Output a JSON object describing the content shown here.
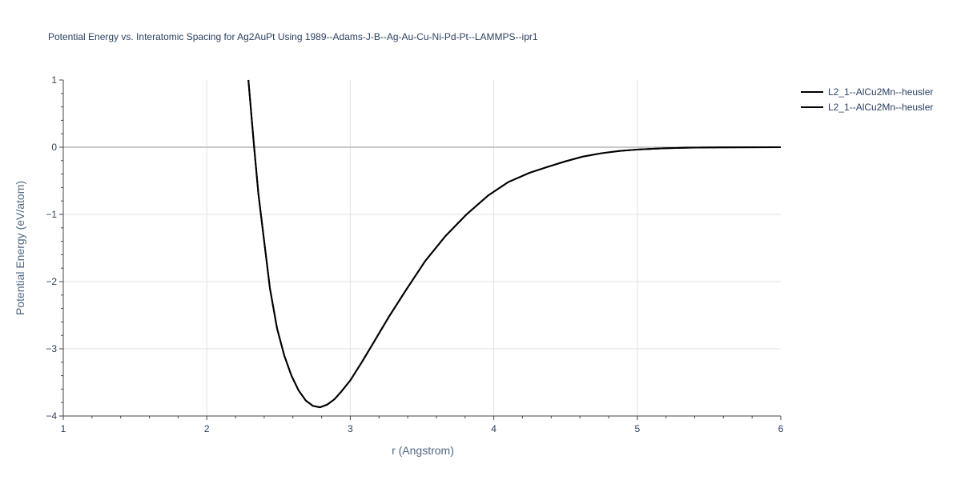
{
  "chart_data": {
    "type": "line",
    "title": "Potential Energy vs. Interatomic Spacing for Ag2AuPt Using 1989--Adams-J-B--Ag-Au-Cu-Ni-Pd-Pt--LAMMPS--ipr1",
    "xlabel": "r (Angstrom)",
    "ylabel": "Potential Energy (eV/atom)",
    "xlim": [
      1,
      6
    ],
    "ylim": [
      -4,
      1
    ],
    "x_ticks": [
      "1",
      "2",
      "3",
      "4",
      "5",
      "6"
    ],
    "y_ticks": [
      "1",
      "0",
      "−1",
      "−2",
      "−3",
      "−4"
    ],
    "grid": true,
    "legend_position": "top-right",
    "series": [
      {
        "name": "L2_1--AlCu2Mn--heusler",
        "color": "#000000",
        "x": [
          2.29,
          2.33,
          2.36,
          2.4,
          2.44,
          2.49,
          2.54,
          2.59,
          2.64,
          2.69,
          2.74,
          2.79,
          2.84,
          2.89,
          2.94,
          3.0,
          3.08,
          3.17,
          3.27,
          3.39,
          3.52,
          3.66,
          3.81,
          3.96,
          4.1,
          4.25,
          4.38,
          4.5,
          4.62,
          4.75,
          4.88,
          5.02,
          5.18,
          5.35,
          5.55,
          5.75,
          6.0
        ],
        "y": [
          1.0,
          0.0,
          -0.7,
          -1.4,
          -2.1,
          -2.7,
          -3.1,
          -3.4,
          -3.62,
          -3.77,
          -3.85,
          -3.87,
          -3.83,
          -3.75,
          -3.63,
          -3.47,
          -3.2,
          -2.88,
          -2.52,
          -2.12,
          -1.7,
          -1.33,
          -1.0,
          -0.72,
          -0.52,
          -0.38,
          -0.29,
          -0.21,
          -0.14,
          -0.09,
          -0.055,
          -0.032,
          -0.016,
          -0.008,
          -0.003,
          -0.001,
          0.0
        ]
      },
      {
        "name": "L2_1--AlCu2Mn--heusler",
        "color": "#000000",
        "x": [
          2.29,
          2.33,
          2.36,
          2.4,
          2.44,
          2.49,
          2.54,
          2.59,
          2.64,
          2.69,
          2.74,
          2.79,
          2.84,
          2.89,
          2.94,
          3.0,
          3.08,
          3.17,
          3.27,
          3.39,
          3.52,
          3.66,
          3.81,
          3.96,
          4.1,
          4.25,
          4.38,
          4.5,
          4.62,
          4.75,
          4.88,
          5.02,
          5.18,
          5.35,
          5.55,
          5.75,
          6.0
        ],
        "y": [
          1.0,
          0.0,
          -0.7,
          -1.4,
          -2.1,
          -2.7,
          -3.1,
          -3.4,
          -3.62,
          -3.77,
          -3.85,
          -3.87,
          -3.83,
          -3.75,
          -3.63,
          -3.47,
          -3.2,
          -2.88,
          -2.52,
          -2.12,
          -1.7,
          -1.33,
          -1.0,
          -0.72,
          -0.52,
          -0.38,
          -0.29,
          -0.21,
          -0.14,
          -0.09,
          -0.055,
          -0.032,
          -0.016,
          -0.008,
          -0.003,
          -0.001,
          0.0
        ]
      }
    ]
  }
}
